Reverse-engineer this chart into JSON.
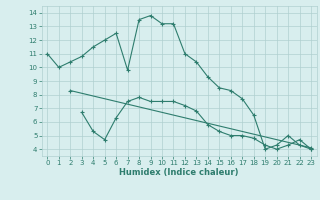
{
  "line1_x": [
    0,
    1,
    2,
    3,
    4,
    5,
    6,
    7,
    8,
    9,
    10,
    11,
    12,
    13,
    14,
    15,
    16,
    17,
    18,
    19,
    20,
    21,
    22,
    23
  ],
  "line1_y": [
    11,
    10,
    10.4,
    10.8,
    11.5,
    12.0,
    12.5,
    9.8,
    13.5,
    13.8,
    13.2,
    13.2,
    11.0,
    10.4,
    9.3,
    8.5,
    8.3,
    7.7,
    6.5,
    4.0,
    4.3,
    5.0,
    4.3,
    4.0
  ],
  "line2_x": [
    2,
    23
  ],
  "line2_y": [
    8.3,
    4.1
  ],
  "line3_x": [
    3,
    4,
    5,
    6,
    7,
    8,
    9,
    10,
    11,
    12,
    13,
    14,
    15,
    16,
    17,
    18,
    19,
    20,
    21,
    22,
    23
  ],
  "line3_y": [
    6.7,
    5.3,
    4.7,
    6.3,
    7.5,
    7.8,
    7.5,
    7.5,
    7.5,
    7.2,
    6.8,
    5.8,
    5.3,
    5.0,
    5.0,
    4.8,
    4.3,
    4.0,
    4.3,
    4.7,
    4.0
  ],
  "color": "#2e7d6e",
  "bg_color": "#d8eeee",
  "grid_color": "#b0d0d0",
  "xlabel": "Humidex (Indice chaleur)",
  "xlim": [
    -0.5,
    23.5
  ],
  "ylim": [
    3.5,
    14.5
  ],
  "yticks": [
    4,
    5,
    6,
    7,
    8,
    9,
    10,
    11,
    12,
    13,
    14
  ],
  "xticks": [
    0,
    1,
    2,
    3,
    4,
    5,
    6,
    7,
    8,
    9,
    10,
    11,
    12,
    13,
    14,
    15,
    16,
    17,
    18,
    19,
    20,
    21,
    22,
    23
  ],
  "marker": "+",
  "markersize": 3,
  "linewidth": 0.8,
  "tick_fontsize": 5,
  "xlabel_fontsize": 6
}
